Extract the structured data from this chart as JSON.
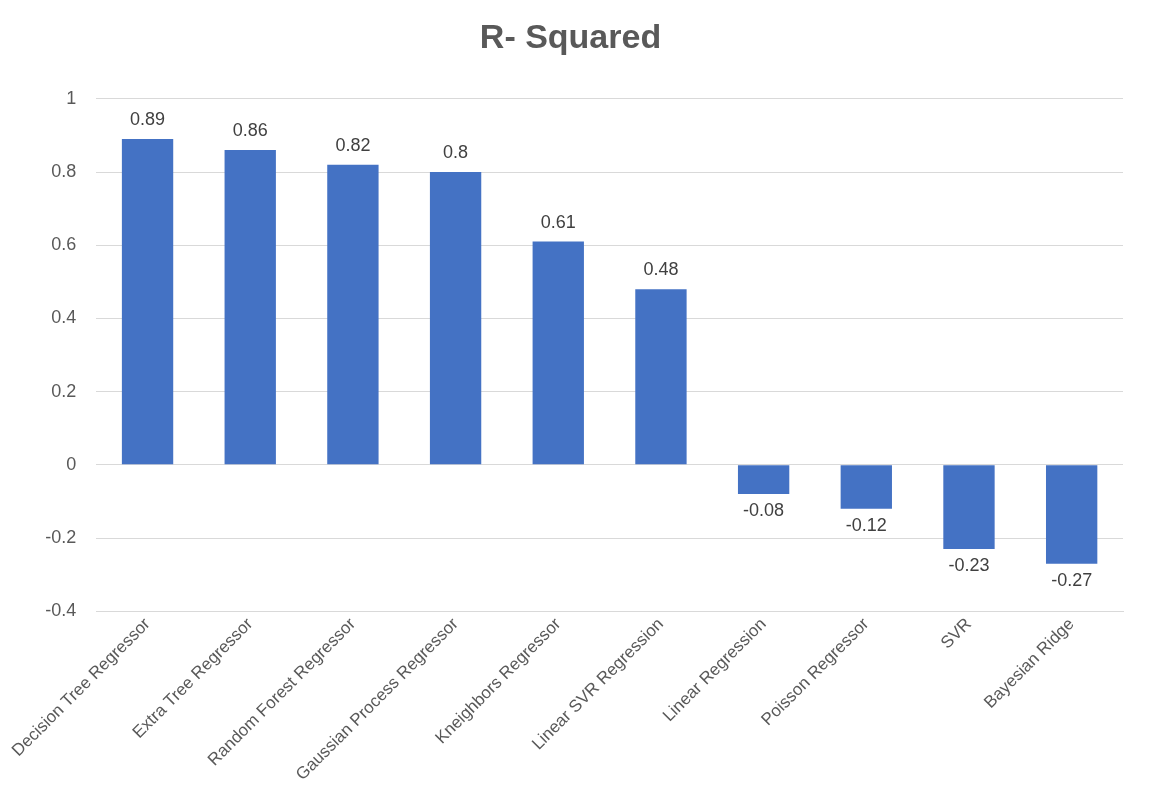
{
  "chart_data": {
    "type": "bar",
    "title": "R- Squared",
    "categories": [
      "Decision Tree Regressor",
      "Extra Tree Regressor",
      "Random Forest Regressor",
      "Gaussian Process Regressor",
      "Kneighbors Regressor",
      "Linear SVR Regression",
      "Linear Regression",
      "Poisson Regressor",
      "SVR",
      "Bayesian Ridge"
    ],
    "values": [
      0.89,
      0.86,
      0.82,
      0.8,
      0.61,
      0.48,
      -0.08,
      -0.12,
      -0.23,
      -0.27
    ],
    "color": "#4472c4",
    "ylim": [
      -0.4,
      1
    ],
    "yticks": [
      -0.4,
      -0.2,
      0,
      0.2,
      0.4,
      0.6,
      0.8,
      1
    ],
    "grid": "y",
    "data_labels": true
  }
}
